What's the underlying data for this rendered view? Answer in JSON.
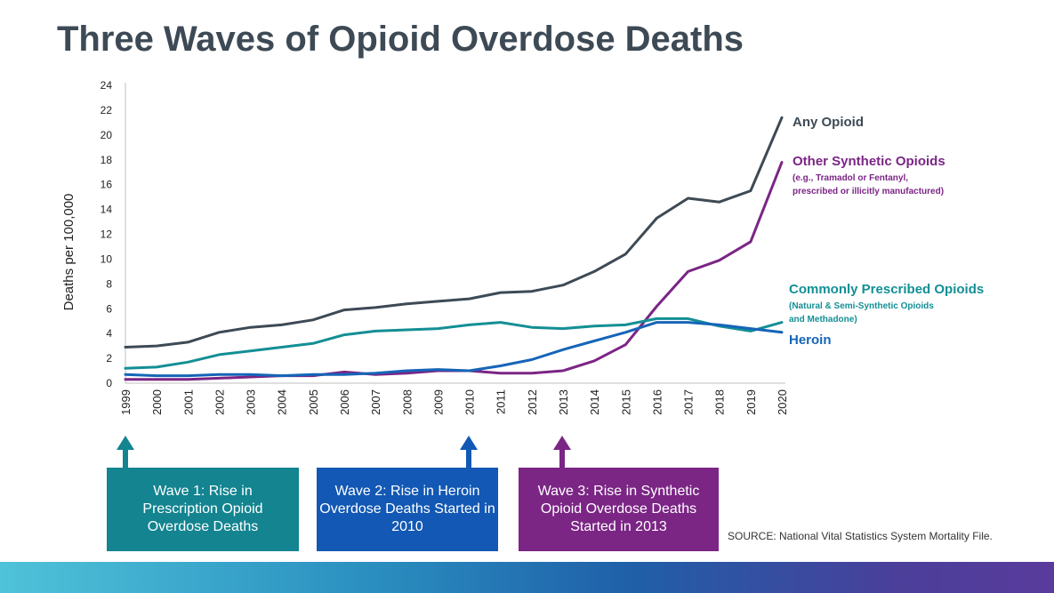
{
  "slide": {
    "title": "Three Waves of Opioid Overdose Deaths",
    "source": "SOURCE: National Vital Statistics System Mortality File."
  },
  "chart_data": {
    "type": "line",
    "title": "Three Waves of Opioid Overdose Deaths",
    "xlabel": "",
    "ylabel": "Deaths per 100,000",
    "ylim": [
      0,
      24
    ],
    "yticks": [
      0,
      2,
      4,
      6,
      8,
      10,
      12,
      14,
      16,
      18,
      20,
      22,
      24
    ],
    "grid": false,
    "x": [
      "1999",
      "2000",
      "2001",
      "2002",
      "2003",
      "2004",
      "2005",
      "2006",
      "2007",
      "2008",
      "2009",
      "2010",
      "2011",
      "2012",
      "2013",
      "2014",
      "2015",
      "2016",
      "2017",
      "2018",
      "2019",
      "2020"
    ],
    "series": [
      {
        "name": "Any Opioid",
        "color": "#3d4a55",
        "values": [
          2.9,
          3.0,
          3.3,
          4.1,
          4.5,
          4.7,
          5.1,
          5.9,
          6.1,
          6.4,
          6.6,
          6.8,
          7.3,
          7.4,
          7.9,
          9.0,
          10.4,
          13.3,
          14.9,
          14.6,
          15.5,
          21.4
        ]
      },
      {
        "name": "Other Synthetic Opioids",
        "note_lines": [
          "(e.g., Tramadol or Fentanyl,",
          "prescribed or illicitly manufactured)"
        ],
        "color": "#7b2585",
        "values": [
          0.3,
          0.3,
          0.3,
          0.4,
          0.5,
          0.6,
          0.6,
          0.9,
          0.7,
          0.8,
          1.0,
          1.0,
          0.8,
          0.8,
          1.0,
          1.8,
          3.1,
          6.2,
          9.0,
          9.9,
          11.4,
          17.8
        ]
      },
      {
        "name": "Commonly Prescribed Opioids",
        "note_lines": [
          "(Natural & Semi-Synthetic Opioids",
          "and Methadone)"
        ],
        "color": "#138f95",
        "values": [
          1.2,
          1.3,
          1.7,
          2.3,
          2.6,
          2.9,
          3.2,
          3.9,
          4.2,
          4.3,
          4.4,
          4.7,
          4.9,
          4.5,
          4.4,
          4.6,
          4.7,
          5.2,
          5.2,
          4.6,
          4.2,
          4.9
        ]
      },
      {
        "name": "Heroin",
        "color": "#1565b8",
        "values": [
          0.7,
          0.6,
          0.6,
          0.7,
          0.7,
          0.6,
          0.7,
          0.7,
          0.8,
          1.0,
          1.1,
          1.0,
          1.4,
          1.9,
          2.7,
          3.4,
          4.1,
          4.9,
          4.9,
          4.7,
          4.4,
          4.1
        ]
      }
    ]
  },
  "waves": [
    {
      "label": "Wave 1: Rise in Prescription Opioid Overdose Deaths",
      "year": "1999",
      "color": "#138490"
    },
    {
      "label": "Wave 2: Rise in Heroin Overdose Deaths Started in 2010",
      "year": "2010",
      "color": "#1258b4"
    },
    {
      "label": "Wave 3: Rise in Synthetic Opioid Overdose Deaths Started in 2013",
      "year": "2013",
      "color": "#7b2585"
    }
  ]
}
